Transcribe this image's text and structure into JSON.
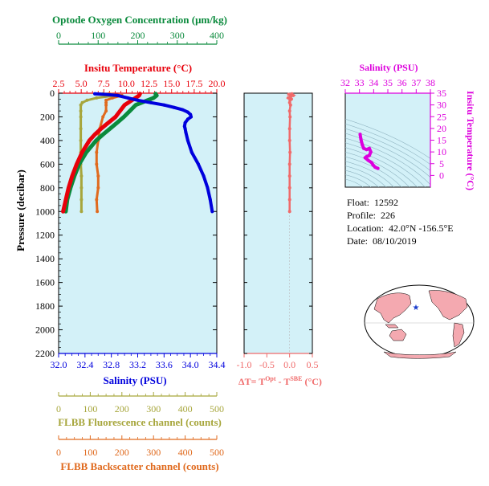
{
  "info": {
    "float_label": "Float:",
    "float_value": "12592",
    "profile_label": "Profile:",
    "profile_value": "226",
    "location_label": "Location:",
    "location_value": "42.0°N  -156.5°E",
    "date_label": "Date:",
    "date_value": "08/10/2019"
  },
  "colors": {
    "oxygen": "#0a8a3c",
    "temperature": "#e8000b",
    "salinity_profile": "#0000dd",
    "fluorescence": "#a7a63c",
    "backscatter": "#e06a1e",
    "delta_t": "#f06a6a",
    "ts_diagram": "#dd00dd",
    "plot_bg": "#d3f1f8",
    "land": "#f4a9b0",
    "float_marker": "#1a3ccc"
  },
  "chart_data": [
    {
      "type": "line",
      "panel": "main-profile",
      "y_axis": {
        "label": "Pressure (decibar)",
        "lim": [
          0,
          2200
        ],
        "inverted": true,
        "ticks": [
          0,
          200,
          400,
          600,
          800,
          1000,
          1200,
          1400,
          1600,
          1800,
          2000,
          2200
        ]
      },
      "axes": [
        {
          "key": "salinity",
          "position": "bottom",
          "label": "Salinity (PSU)",
          "lim": [
            32.0,
            34.4
          ],
          "ticks": [
            "32.0",
            "32.4",
            "32.8",
            "33.2",
            "33.6",
            "34.0",
            "34.4"
          ]
        },
        {
          "key": "temperature",
          "position": "top",
          "label": "Insitu Temperature (°C)",
          "lim": [
            2.5,
            20.0
          ],
          "ticks": [
            "2.5",
            "5.0",
            "7.5",
            "10.0",
            "12.5",
            "15.0",
            "17.5",
            "20.0"
          ]
        },
        {
          "key": "oxygen",
          "position": "top",
          "label": "Optode Oxygen Concentration (μm/kg)",
          "lim": [
            0,
            400
          ],
          "ticks": [
            "0",
            "100",
            "200",
            "300",
            "400"
          ]
        },
        {
          "key": "fluorescence",
          "position": "bottom",
          "label": "FLBB Fluorescence channel (counts)",
          "lim": [
            0,
            500
          ],
          "ticks": [
            "0",
            "100",
            "200",
            "300",
            "400",
            "500"
          ]
        },
        {
          "key": "backscatter",
          "position": "bottom",
          "label": "FLBB Backscatter channel (counts)",
          "lim": [
            0,
            500
          ],
          "ticks": [
            "0",
            "100",
            "200",
            "300",
            "400",
            "500"
          ]
        }
      ],
      "series": [
        {
          "key": "salinity",
          "pressure": [
            5,
            10,
            20,
            40,
            60,
            80,
            100,
            120,
            140,
            160,
            180,
            200,
            220,
            250,
            280,
            300,
            330,
            400,
            500,
            600,
            700,
            800,
            900,
            1000
          ],
          "values": [
            32.55,
            32.7,
            32.9,
            33.05,
            33.2,
            33.4,
            33.6,
            33.75,
            33.88,
            33.96,
            34.0,
            34.01,
            33.96,
            33.92,
            33.91,
            33.92,
            33.93,
            33.96,
            34.02,
            34.12,
            34.2,
            34.26,
            34.3,
            34.33
          ]
        },
        {
          "key": "temperature",
          "pressure": [
            5,
            20,
            40,
            60,
            80,
            100,
            150,
            200,
            250,
            300,
            350,
            400,
            500,
            600,
            700,
            800,
            900,
            1000
          ],
          "values": [
            11.5,
            11.4,
            11.0,
            10.6,
            10.2,
            9.8,
            9.3,
            8.8,
            8.0,
            7.2,
            6.5,
            5.9,
            5.1,
            4.5,
            4.0,
            3.6,
            3.3,
            3.0
          ]
        },
        {
          "key": "oxygen",
          "pressure": [
            5,
            20,
            40,
            60,
            80,
            100,
            150,
            200,
            250,
            300,
            350,
            400,
            500,
            600,
            700,
            800,
            900,
            1000
          ],
          "values": [
            245,
            248,
            240,
            225,
            210,
            195,
            180,
            165,
            148,
            130,
            112,
            95,
            70,
            52,
            40,
            30,
            22,
            18
          ]
        },
        {
          "key": "fluorescence",
          "pressure": [
            5,
            20,
            40,
            60,
            80,
            100,
            150,
            200,
            300,
            400,
            500,
            600,
            700,
            800,
            900,
            1000
          ],
          "values": [
            140,
            180,
            120,
            90,
            75,
            70,
            70,
            70,
            70,
            70,
            70,
            70,
            72,
            72,
            72,
            72
          ]
        },
        {
          "key": "backscatter",
          "pressure": [
            5,
            20,
            40,
            60,
            80,
            100,
            150,
            200,
            300,
            400,
            500,
            600,
            700,
            800,
            900,
            1000
          ],
          "values": [
            160,
            200,
            170,
            150,
            150,
            150,
            150,
            140,
            130,
            125,
            120,
            120,
            125,
            125,
            120,
            122
          ]
        }
      ]
    },
    {
      "type": "scatter",
      "panel": "delta-t",
      "xlabel": "ΔT= T",
      "xlabel_sup1": "Opt",
      "xlabel_mid": " - T",
      "xlabel_sup2": "SBE",
      "xlabel_unit": " (°C)",
      "xlim": [
        -1.0,
        0.5
      ],
      "x_ticks": [
        "-1.0",
        "-0.5",
        "0.0",
        "0.5"
      ],
      "ylim": [
        0,
        2200
      ],
      "pressure": [
        5,
        10,
        20,
        30,
        40,
        50,
        60,
        80,
        100,
        150,
        200,
        300,
        400,
        500,
        600,
        700,
        800,
        900,
        1000
      ],
      "values": [
        0.05,
        -0.02,
        0.08,
        0.02,
        -0.03,
        0.04,
        0.01,
        0.0,
        0.02,
        0.0,
        0.01,
        0.0,
        0.0,
        0.01,
        0.0,
        0.0,
        0.0,
        0.0,
        0.0
      ]
    },
    {
      "type": "line",
      "panel": "ts-diagram",
      "xlabel": "Salinity (PSU)",
      "ylabel": "Insitu Temperature (°C)",
      "xlim": [
        32,
        38
      ],
      "x_ticks": [
        "32",
        "33",
        "34",
        "35",
        "36",
        "37",
        "38"
      ],
      "ylim": [
        -5,
        35
      ],
      "y_ticks": [
        "0",
        "5",
        "10",
        "15",
        "20",
        "25",
        "30",
        "35"
      ],
      "salinity": [
        33.05,
        33.1,
        33.2,
        33.3,
        33.5,
        33.7,
        33.8,
        33.7,
        33.5,
        33.4,
        33.6,
        33.85,
        33.95,
        34.1,
        34.3
      ],
      "temperature": [
        17.5,
        15.5,
        13.0,
        11.5,
        11.0,
        11.5,
        10.0,
        8.5,
        8.0,
        7.5,
        6.5,
        5.5,
        4.5,
        3.5,
        3.0
      ]
    }
  ]
}
